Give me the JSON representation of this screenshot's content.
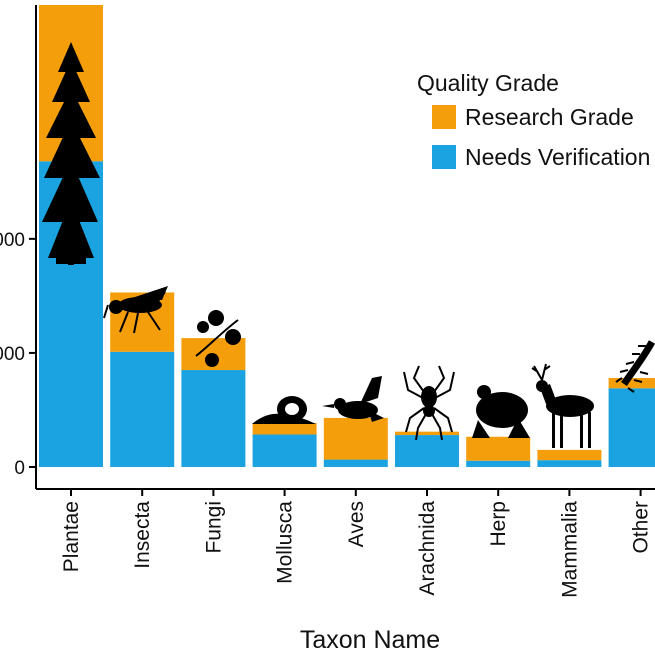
{
  "chart_data": {
    "type": "bar",
    "stacked": true,
    "categories": [
      "Plantae",
      "Insecta",
      "Fungi",
      "Mollusca",
      "Aves",
      "Arachnida",
      "Herp",
      "Mammalia",
      "Other"
    ],
    "series": [
      {
        "name": "Needs Verification",
        "color": "#1aa3e0",
        "values": [
          2680,
          1010,
          850,
          285,
          65,
          280,
          55,
          60,
          690
        ]
      },
      {
        "name": "Research Grade",
        "color": "#f59e0b",
        "values": [
          1370,
          520,
          280,
          100,
          365,
          30,
          210,
          90,
          90
        ]
      }
    ],
    "xlabel": "Taxon Name",
    "ylabel": "",
    "ylim": [
      0,
      4050
    ],
    "yticks": [
      0,
      1000,
      2000
    ],
    "ytick_labels": [
      "0",
      "000",
      "000"
    ],
    "legend": {
      "title": "Quality Grade",
      "position": "top-right",
      "items": [
        "Research Grade",
        "Needs Verification"
      ]
    },
    "grid": false,
    "silhouettes": [
      "tree-icon",
      "fly-icon",
      "mushroom-icon",
      "snail-icon",
      "duck-icon",
      "spider-icon",
      "frog-icon",
      "deer-icon",
      "centipede-icon"
    ]
  }
}
